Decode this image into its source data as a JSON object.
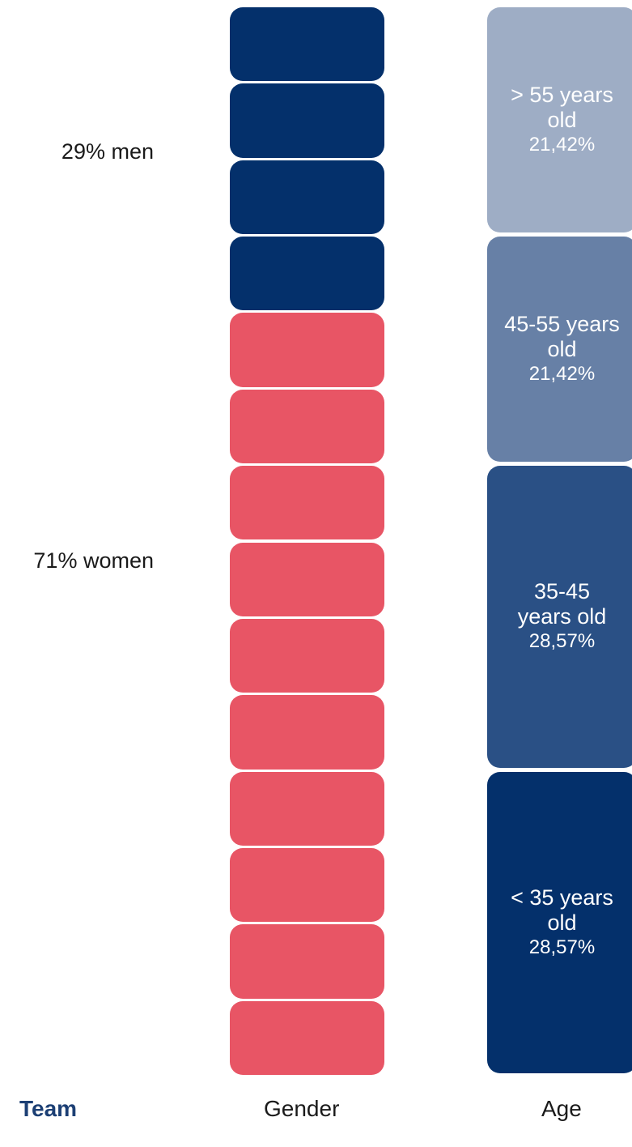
{
  "gender": {
    "labels": {
      "men": "29% men",
      "women": "71% women"
    }
  },
  "footer": {
    "team": "Team",
    "gender": "Gender",
    "age": "Age"
  },
  "colors": {
    "men": "#04306b",
    "women": "#e85565",
    "age_gt55": "#9eadc5",
    "age_45_55": "#6780a6",
    "age_35_45": "#2a5085",
    "age_lt35": "#04306b",
    "team_label": "#1c3f74"
  },
  "chart_data": [
    {
      "type": "bar",
      "xlabel": "Gender",
      "categories": [
        "men",
        "women"
      ],
      "values": [
        4,
        10
      ],
      "value_labels": [
        "29% men",
        "71% women"
      ]
    },
    {
      "type": "bar",
      "xlabel": "Age",
      "categories": [
        "> 55 years old",
        "45-55 years old",
        "35-45 years old",
        "< 35 years old"
      ],
      "values": [
        21.42,
        21.42,
        28.57,
        28.57
      ],
      "segments": [
        {
          "line1": "> 55 years",
          "line2": "old",
          "pct": "21,42%"
        },
        {
          "line1": "45-55 years",
          "line2": "old",
          "pct": "21,42%"
        },
        {
          "line1": "35-45",
          "line2": "years old",
          "pct": "28,57%"
        },
        {
          "line1": "< 35 years",
          "line2": "old",
          "pct": "28,57%"
        }
      ]
    }
  ]
}
